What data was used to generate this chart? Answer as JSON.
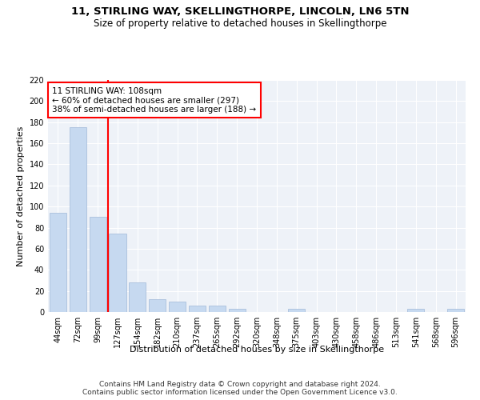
{
  "title1": "11, STIRLING WAY, SKELLINGTHORPE, LINCOLN, LN6 5TN",
  "title2": "Size of property relative to detached houses in Skellingthorpe",
  "xlabel": "Distribution of detached houses by size in Skellingthorpe",
  "ylabel": "Number of detached properties",
  "bar_labels": [
    "44sqm",
    "72sqm",
    "99sqm",
    "127sqm",
    "154sqm",
    "182sqm",
    "210sqm",
    "237sqm",
    "265sqm",
    "292sqm",
    "320sqm",
    "348sqm",
    "375sqm",
    "403sqm",
    "430sqm",
    "458sqm",
    "486sqm",
    "513sqm",
    "541sqm",
    "568sqm",
    "596sqm"
  ],
  "bar_values": [
    94,
    175,
    90,
    74,
    28,
    12,
    10,
    6,
    6,
    3,
    0,
    0,
    3,
    0,
    0,
    0,
    0,
    0,
    3,
    0,
    3
  ],
  "bar_color": "#c6d9f0",
  "bar_edge_color": "#a0b8d8",
  "vline_color": "red",
  "annotation_text": "11 STIRLING WAY: 108sqm\n← 60% of detached houses are smaller (297)\n38% of semi-detached houses are larger (188) →",
  "annotation_box_color": "white",
  "annotation_box_edge": "red",
  "ylim": [
    0,
    220
  ],
  "yticks": [
    0,
    20,
    40,
    60,
    80,
    100,
    120,
    140,
    160,
    180,
    200,
    220
  ],
  "background_color": "#eef2f8",
  "footer_text": "Contains HM Land Registry data © Crown copyright and database right 2024.\nContains public sector information licensed under the Open Government Licence v3.0.",
  "title1_fontsize": 9.5,
  "title2_fontsize": 8.5,
  "xlabel_fontsize": 8,
  "ylabel_fontsize": 8,
  "annotation_fontsize": 7.5,
  "footer_fontsize": 6.5,
  "tick_fontsize": 7
}
